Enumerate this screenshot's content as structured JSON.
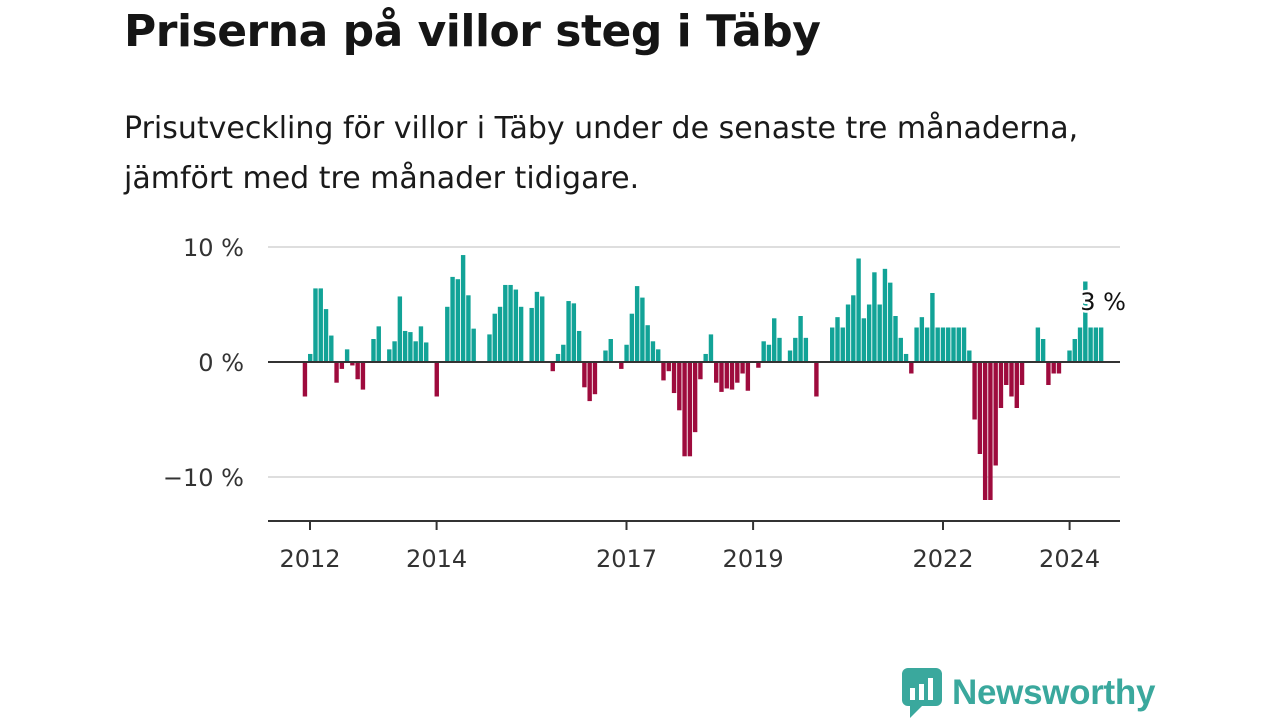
{
  "title": "Priserna på villor steg i Täby",
  "subtitle": "Prisutveckling för villor i Täby under de senaste tre månaderna, jämfört med tre månader tidigare.",
  "brand": {
    "name": "Newsworthy",
    "icon": "newsworthy-logo-icon",
    "color": "#3aa89d"
  },
  "colors": {
    "positive": "#12a397",
    "negative": "#9e0b3d",
    "grid": "#dedede",
    "axis": "#333333"
  },
  "chart_data": {
    "type": "bar",
    "ylim": [
      -14,
      10
    ],
    "yticks": [
      {
        "value": 10,
        "label": "10 %"
      },
      {
        "value": 0,
        "label": "0 %"
      },
      {
        "value": -10,
        "label": "−10 %"
      }
    ],
    "xticks": [
      {
        "value": 2012,
        "label": "2012"
      },
      {
        "value": 2014,
        "label": "2014"
      },
      {
        "value": 2017,
        "label": "2017"
      },
      {
        "value": 2019,
        "label": "2019"
      },
      {
        "value": 2022,
        "label": "2022"
      },
      {
        "value": 2024,
        "label": "2024"
      }
    ],
    "x_start": 2011.92,
    "x_step": 0.0833,
    "values": [
      -3,
      0.7,
      6.4,
      6.4,
      4.6,
      2.3,
      -1.8,
      -0.6,
      1.1,
      -0.3,
      -1.5,
      -2.4,
      0,
      2,
      3.1,
      0,
      1.1,
      1.8,
      5.7,
      2.7,
      2.6,
      1.8,
      3.1,
      1.7,
      0,
      -3.0,
      0,
      4.8,
      7.4,
      7.2,
      9.3,
      5.8,
      2.9,
      0,
      0,
      2.4,
      4.2,
      4.8,
      6.7,
      6.7,
      6.3,
      4.8,
      0,
      4.7,
      6.1,
      5.7,
      0,
      -0.8,
      0.7,
      1.5,
      5.3,
      5.1,
      2.7,
      -2.2,
      -3.4,
      -2.8,
      0,
      1.0,
      2.0,
      0,
      -0.6,
      1.5,
      4.2,
      6.6,
      5.6,
      3.2,
      1.8,
      1.1,
      -1.6,
      -0.8,
      -2.7,
      -4.2,
      -8.2,
      -8.2,
      -6.1,
      -1.5,
      0.7,
      2.4,
      -1.8,
      -2.6,
      -2.3,
      -2.4,
      -1.8,
      -1.0,
      -2.5,
      0,
      -0.5,
      1.8,
      1.5,
      3.8,
      2.1,
      0,
      1.0,
      2.1,
      4.0,
      2.1,
      0,
      -3.0,
      0,
      0,
      3.0,
      3.9,
      3.0,
      5.0,
      5.8,
      9.0,
      3.8,
      5.0,
      7.8,
      5.0,
      8.1,
      6.9,
      4.0,
      2.1,
      0.7,
      -1.0,
      3.0,
      3.9,
      3.0,
      6.0,
      3.0,
      3.0,
      3.0,
      3.0,
      3.0,
      3.0,
      1.0,
      -5.0,
      -8.0,
      -12.0,
      -12.0,
      -9.0,
      -4.0,
      -2.0,
      -3.0,
      -4.0,
      -2.0,
      0,
      0,
      3.0,
      2.0,
      -2.0,
      -1.0,
      -1.0,
      0,
      1.0,
      2.0,
      3.0,
      7.0,
      3.0,
      3.0,
      3.0
    ],
    "last_value_label": "3 %"
  }
}
